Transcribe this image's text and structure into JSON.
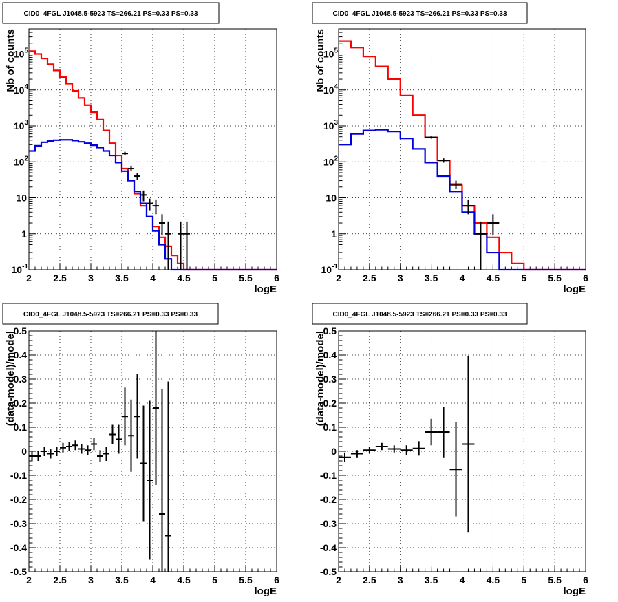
{
  "chart_data": [
    {
      "type": "line",
      "title": "CID0_4FGL J1048.5-5923 TS=266.21 PS=0.33 PS=0.33",
      "xlabel": "logE",
      "ylabel": "Nb of counts",
      "xlim": [
        2,
        6
      ],
      "ylim": [
        0.1,
        500000
      ],
      "yscale": "log",
      "grid": true,
      "x_ticks": [
        "2",
        "2.5",
        "3",
        "3.5",
        "4",
        "4.5",
        "5",
        "5.5",
        "6"
      ],
      "y_ticks": [
        "10^-1",
        "1",
        "10",
        "10^2",
        "10^3",
        "10^4",
        "10^5"
      ],
      "bin_edges": [
        2.0,
        2.1,
        2.2,
        2.3,
        2.4,
        2.5,
        2.6,
        2.7,
        2.8,
        2.9,
        3.0,
        3.1,
        3.2,
        3.3,
        3.4,
        3.5,
        3.6,
        3.7,
        3.8,
        3.9,
        4.0,
        4.1,
        4.2,
        4.3,
        4.4,
        4.5,
        4.6,
        4.7,
        4.8,
        4.9,
        5.0,
        5.1,
        5.2,
        5.3,
        5.4,
        5.5,
        5.6,
        5.7,
        5.8,
        5.9,
        6.0
      ],
      "series": [
        {
          "values": [
            120000,
            100000,
            75000,
            52000,
            35000,
            23000,
            15000,
            9500,
            6000,
            3800,
            2400,
            1500,
            750,
            330,
            150,
            65,
            30,
            13,
            6,
            3,
            1.6,
            0.8,
            0.45,
            0.25,
            0.15,
            0.1,
            0.1,
            0.1,
            0.1,
            0.1,
            0.1,
            0.1,
            0.1,
            0.1,
            0.1,
            0.1,
            0.1,
            0.1,
            0.1,
            0.1
          ],
          "color": "#ff0000"
        },
        {
          "values": [
            200,
            280,
            350,
            380,
            400,
            410,
            410,
            390,
            360,
            330,
            290,
            250,
            200,
            150,
            95,
            55,
            30,
            15,
            7,
            3,
            1.2,
            0.5,
            0.2,
            0.1,
            0.1,
            0.1,
            0.1,
            0.1,
            0.1,
            0.1,
            0.1,
            0.1,
            0.1,
            0.1,
            0.1,
            0.1,
            0.1,
            0.1,
            0.1,
            0.1
          ],
          "color": "#0000dd"
        }
      ],
      "points": [
        {
          "x": 3.55,
          "y": 170,
          "ylo": 150,
          "yhi": 190
        },
        {
          "x": 3.65,
          "y": 65,
          "ylo": 55,
          "yhi": 78
        },
        {
          "x": 3.75,
          "y": 40,
          "ylo": 32,
          "yhi": 48
        },
        {
          "x": 3.85,
          "y": 12,
          "ylo": 8,
          "yhi": 16
        },
        {
          "x": 3.95,
          "y": 7,
          "ylo": 4.5,
          "yhi": 9.5
        },
        {
          "x": 4.05,
          "y": 6,
          "ylo": 3.5,
          "yhi": 9
        },
        {
          "x": 4.15,
          "y": 2,
          "ylo": 0.9,
          "yhi": 3.5
        },
        {
          "x": 4.25,
          "y": 1,
          "ylo": 0.1,
          "yhi": 2.2
        },
        {
          "x": 4.45,
          "y": 1,
          "ylo": 0.1,
          "yhi": 2.2
        },
        {
          "x": 4.55,
          "y": 1,
          "ylo": 0.1,
          "yhi": 2.2
        }
      ]
    },
    {
      "type": "line",
      "title": "CID0_4FGL J1048.5-5923 TS=266.21 PS=0.33 PS=0.33",
      "xlabel": "logE",
      "ylabel": "Nb of counts",
      "xlim": [
        2,
        6
      ],
      "ylim": [
        0.1,
        500000
      ],
      "yscale": "log",
      "grid": true,
      "x_ticks": [
        "2",
        "2.5",
        "3",
        "3.5",
        "4",
        "4.5",
        "5",
        "5.5",
        "6"
      ],
      "y_ticks": [
        "10^-1",
        "1",
        "10",
        "10^2",
        "10^3",
        "10^4",
        "10^5"
      ],
      "bin_edges": [
        2.0,
        2.2,
        2.4,
        2.6,
        2.8,
        3.0,
        3.2,
        3.4,
        3.6,
        3.8,
        4.0,
        4.2,
        4.4,
        4.6,
        4.8,
        5.0,
        5.2,
        5.4,
        5.6,
        5.8,
        6.0
      ],
      "series": [
        {
          "values": [
            230000,
            150000,
            85000,
            45000,
            20000,
            7000,
            2000,
            480,
            110,
            22,
            6,
            2,
            0.8,
            0.3,
            0.15,
            0.1,
            0.1,
            0.1,
            0.1,
            0.1
          ],
          "color": "#ff0000"
        },
        {
          "values": [
            300,
            600,
            750,
            780,
            700,
            450,
            230,
            95,
            40,
            15,
            4,
            1,
            0.3,
            0.1,
            0.1,
            0.1,
            0.1,
            0.1,
            0.1,
            0.1
          ],
          "color": "#0000dd"
        }
      ],
      "points": [
        {
          "x": 3.5,
          "y": 480,
          "ylo": 440,
          "yhi": 520
        },
        {
          "x": 3.7,
          "y": 110,
          "ylo": 95,
          "yhi": 125
        },
        {
          "x": 3.9,
          "y": 24,
          "ylo": 18,
          "yhi": 30
        },
        {
          "x": 4.1,
          "y": 6,
          "ylo": 3.5,
          "yhi": 9
        },
        {
          "x": 4.3,
          "y": 1,
          "ylo": 0.1,
          "yhi": 2.2
        },
        {
          "x": 4.5,
          "y": 2,
          "ylo": 0.9,
          "yhi": 3.5
        }
      ]
    },
    {
      "type": "scatter",
      "title": "CID0_4FGL J1048.5-5923 TS=266.21 PS=0.33 PS=0.33",
      "xlabel": "logE",
      "ylabel": "(data-model)/model",
      "xlim": [
        2,
        6
      ],
      "ylim": [
        -0.5,
        0.5
      ],
      "grid": true,
      "x_ticks": [
        "2",
        "2.5",
        "3",
        "3.5",
        "4",
        "4.5",
        "5",
        "5.5",
        "6"
      ],
      "y_ticks": [
        "-0.5",
        "-0.4",
        "-0.3",
        "-0.2",
        "-0.1",
        "0",
        "0.1",
        "0.2",
        "0.3",
        "0.4",
        "0.5"
      ],
      "bin_width": 0.1,
      "points": [
        {
          "x": 2.05,
          "y": -0.02,
          "err": 0.02
        },
        {
          "x": 2.15,
          "y": -0.02,
          "err": 0.02
        },
        {
          "x": 2.25,
          "y": 0.0,
          "err": 0.02
        },
        {
          "x": 2.35,
          "y": -0.01,
          "err": 0.02
        },
        {
          "x": 2.45,
          "y": 0.0,
          "err": 0.02
        },
        {
          "x": 2.55,
          "y": 0.015,
          "err": 0.02
        },
        {
          "x": 2.65,
          "y": 0.02,
          "err": 0.02
        },
        {
          "x": 2.75,
          "y": 0.025,
          "err": 0.02
        },
        {
          "x": 2.85,
          "y": 0.01,
          "err": 0.02
        },
        {
          "x": 2.95,
          "y": 0.005,
          "err": 0.02
        },
        {
          "x": 3.05,
          "y": 0.03,
          "err": 0.025
        },
        {
          "x": 3.15,
          "y": -0.02,
          "err": 0.025
        },
        {
          "x": 3.25,
          "y": -0.01,
          "err": 0.03
        },
        {
          "x": 3.35,
          "y": 0.07,
          "err": 0.04
        },
        {
          "x": 3.45,
          "y": 0.05,
          "err": 0.06
        },
        {
          "x": 3.55,
          "y": 0.145,
          "err": 0.12
        },
        {
          "x": 3.65,
          "y": 0.065,
          "err": 0.15
        },
        {
          "x": 3.75,
          "y": 0.145,
          "err": 0.175
        },
        {
          "x": 3.85,
          "y": -0.05,
          "err": 0.24
        },
        {
          "x": 3.95,
          "y": -0.12,
          "err": 0.33
        },
        {
          "x": 4.05,
          "y": 0.18,
          "err": 0.32
        },
        {
          "x": 4.15,
          "y": -0.26,
          "err": 0.52
        },
        {
          "x": 4.25,
          "y": -0.35,
          "err": 0.64
        }
      ]
    },
    {
      "type": "scatter",
      "title": "CID0_4FGL J1048.5-5923 TS=266.21 PS=0.33 PS=0.33",
      "xlabel": "logE",
      "ylabel": "(data-model)/model",
      "xlim": [
        2,
        6
      ],
      "ylim": [
        -0.5,
        0.5
      ],
      "grid": true,
      "x_ticks": [
        "2",
        "2.5",
        "3",
        "3.5",
        "4",
        "4.5",
        "5",
        "5.5",
        "6"
      ],
      "y_ticks": [
        "-0.5",
        "-0.4",
        "-0.3",
        "-0.2",
        "-0.1",
        "0",
        "0.1",
        "0.2",
        "0.3",
        "0.4",
        "0.5"
      ],
      "bin_width": 0.2,
      "points": [
        {
          "x": 2.1,
          "y": -0.025,
          "err": 0.02
        },
        {
          "x": 2.3,
          "y": -0.01,
          "err": 0.015
        },
        {
          "x": 2.5,
          "y": 0.005,
          "err": 0.015
        },
        {
          "x": 2.7,
          "y": 0.02,
          "err": 0.015
        },
        {
          "x": 2.9,
          "y": 0.01,
          "err": 0.015
        },
        {
          "x": 3.1,
          "y": 0.005,
          "err": 0.02
        },
        {
          "x": 3.3,
          "y": 0.012,
          "err": 0.03
        },
        {
          "x": 3.5,
          "y": 0.08,
          "err": 0.055
        },
        {
          "x": 3.7,
          "y": 0.08,
          "err": 0.105
        },
        {
          "x": 3.9,
          "y": -0.075,
          "err": 0.195
        },
        {
          "x": 4.1,
          "y": 0.03,
          "err": 0.365
        }
      ]
    }
  ]
}
